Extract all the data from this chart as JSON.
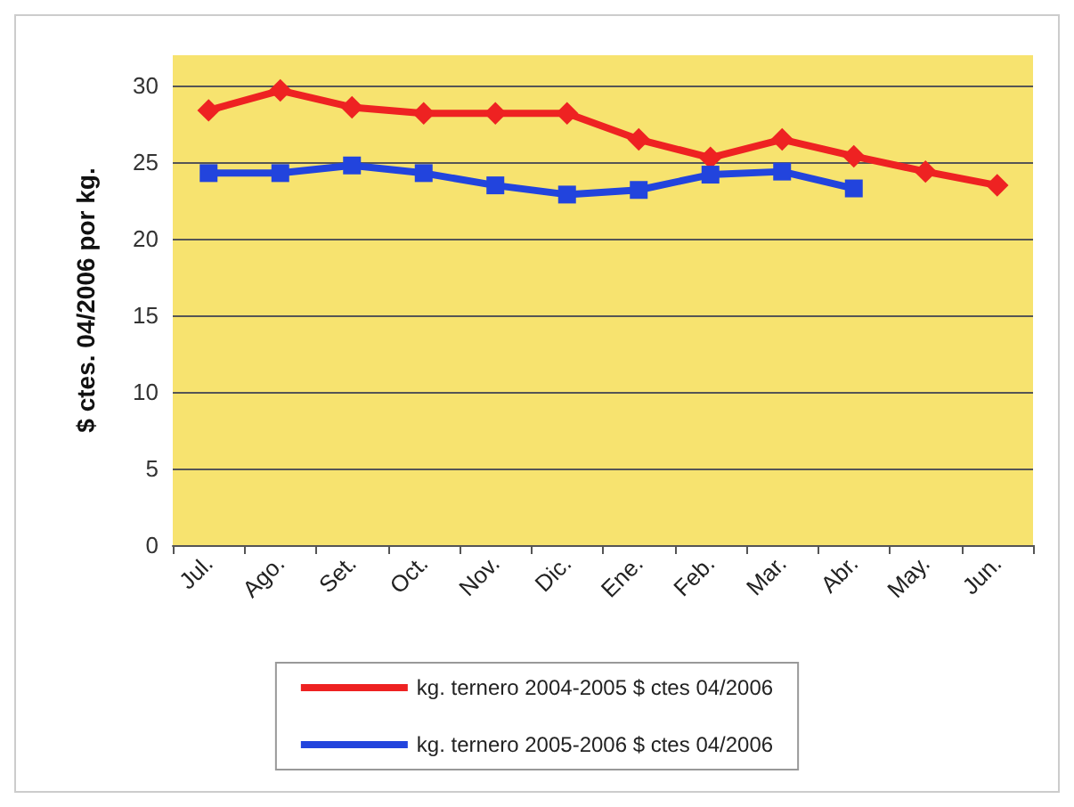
{
  "chart_data": {
    "type": "line",
    "ylabel": "$ ctes. 04/2006 por kg.",
    "categories": [
      "Jul.",
      "Ago.",
      "Set.",
      "Oct.",
      "Nov.",
      "Dic.",
      "Ene.",
      "Feb.",
      "Mar.",
      "Abr.",
      "May.",
      "Jun."
    ],
    "series": [
      {
        "name": "kg. ternero 2004-2005 $ ctes 04/2006",
        "color": "#ee2222",
        "marker": "diamond",
        "values": [
          28.4,
          29.7,
          28.6,
          28.2,
          28.2,
          28.2,
          26.5,
          25.3,
          26.5,
          25.4,
          24.4,
          23.5
        ]
      },
      {
        "name": "kg. ternero 2005-2006 $ ctes 04/2006",
        "color": "#2244dd",
        "marker": "square",
        "values": [
          24.3,
          24.3,
          24.8,
          24.3,
          23.5,
          22.9,
          23.2,
          24.2,
          24.4,
          23.3,
          null,
          null
        ]
      }
    ],
    "ylim": [
      0,
      32
    ],
    "yticks": [
      0,
      5,
      10,
      15,
      20,
      25,
      30
    ],
    "grid": "y",
    "legend": "bottom"
  }
}
